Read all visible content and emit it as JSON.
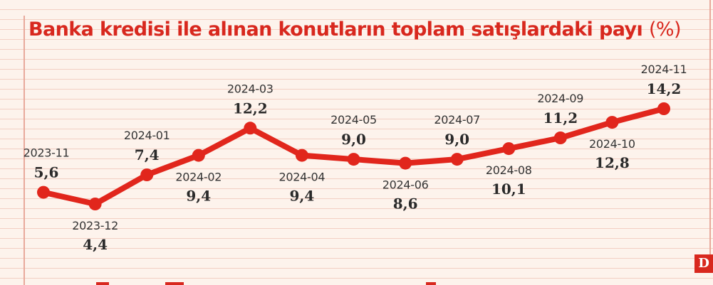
{
  "title": {
    "main": "Banka kredisi ile alınan konutların toplam satışlardaki payı",
    "unit": "(%)"
  },
  "logo": "D",
  "colors": {
    "accent": "#d8281e",
    "line": "#e1261c",
    "background": "#fdf3ec",
    "rule_lines": "#f3cfc3"
  },
  "chart_data": {
    "type": "line",
    "title": "Banka kredisi ile alınan konutların toplam satışlardaki payı (%)",
    "categories": [
      "2023-11",
      "2023-12",
      "2024-01",
      "2024-02",
      "2024-03",
      "2024-04",
      "2024-05",
      "2024-06",
      "2024-07",
      "2024-08",
      "2024-09",
      "2024-10",
      "2024-11"
    ],
    "values": [
      5.6,
      4.4,
      7.4,
      9.4,
      12.2,
      9.4,
      9.0,
      8.6,
      9.0,
      10.1,
      11.2,
      12.8,
      14.2
    ],
    "value_labels": [
      "5,6",
      "4,4",
      "7,4",
      "9,4",
      "12,2",
      "9,4",
      "9,0",
      "8,6",
      "9,0",
      "10,1",
      "11,2",
      "12,8",
      "14,2"
    ],
    "label_position": [
      "above",
      "below",
      "above",
      "below",
      "above",
      "below",
      "above",
      "below",
      "above",
      "below",
      "above",
      "below",
      "above"
    ],
    "grid": false,
    "legend": "none"
  }
}
